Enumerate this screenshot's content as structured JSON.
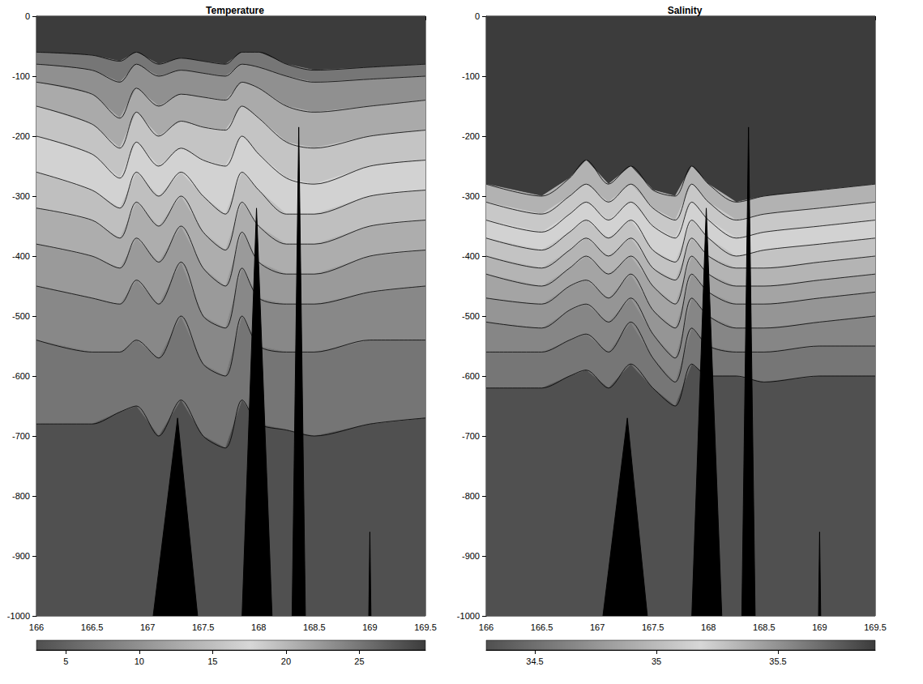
{
  "chart_data": [
    {
      "type": "contour",
      "title": "Temperature",
      "x": [
        166,
        166.5,
        166.75,
        166.9,
        167.1,
        167.3,
        167.5,
        167.7,
        167.85,
        168,
        168.25,
        168.5,
        169,
        169.5
      ],
      "xlim": [
        166,
        169.5
      ],
      "xticks": [
        166,
        166.5,
        167,
        167.5,
        168,
        168.5,
        169,
        169.5
      ],
      "ylim": [
        -1000,
        0
      ],
      "yticks": [
        -1000,
        -900,
        -800,
        -700,
        -600,
        -500,
        -400,
        -300,
        -200,
        -100,
        0
      ],
      "grid": false,
      "contours": [
        {
          "level": 26,
          "depths": [
            -60,
            -65,
            -75,
            -60,
            -80,
            -70,
            -75,
            -80,
            -60,
            -60,
            -80,
            -90,
            -85,
            -80
          ]
        },
        {
          "level": 24,
          "depths": [
            -80,
            -90,
            -110,
            -80,
            -100,
            -90,
            -95,
            -100,
            -80,
            -85,
            -100,
            -110,
            -105,
            -100
          ]
        },
        {
          "level": 22,
          "depths": [
            -110,
            -130,
            -170,
            -120,
            -150,
            -130,
            -135,
            -140,
            -110,
            -120,
            -150,
            -160,
            -150,
            -140
          ]
        },
        {
          "level": 20,
          "depths": [
            -150,
            -180,
            -220,
            -160,
            -200,
            -175,
            -185,
            -190,
            -150,
            -170,
            -210,
            -220,
            -200,
            -190
          ]
        },
        {
          "level": 18,
          "depths": [
            -200,
            -230,
            -270,
            -210,
            -250,
            -220,
            -240,
            -250,
            -200,
            -230,
            -270,
            -280,
            -250,
            -240
          ]
        },
        {
          "level": 16,
          "depths": [
            -260,
            -290,
            -320,
            -260,
            -300,
            -260,
            -300,
            -330,
            -260,
            -290,
            -330,
            -330,
            -300,
            -290
          ]
        },
        {
          "level": 14,
          "depths": [
            -320,
            -340,
            -370,
            -310,
            -350,
            -300,
            -360,
            -390,
            -310,
            -350,
            -380,
            -380,
            -350,
            -340
          ]
        },
        {
          "level": 12,
          "depths": [
            -380,
            -400,
            -420,
            -370,
            -410,
            -350,
            -420,
            -450,
            -360,
            -410,
            -430,
            -430,
            -400,
            -390
          ]
        },
        {
          "level": 10,
          "depths": [
            -450,
            -470,
            -480,
            -440,
            -480,
            -410,
            -500,
            -520,
            -420,
            -470,
            -480,
            -480,
            -460,
            -450
          ]
        },
        {
          "level": 8,
          "depths": [
            -540,
            -560,
            -560,
            -540,
            -570,
            -500,
            -580,
            -600,
            -500,
            -550,
            -560,
            -560,
            -540,
            -540
          ]
        },
        {
          "level": 6,
          "depths": [
            -680,
            -680,
            -660,
            -650,
            -700,
            -640,
            -700,
            -720,
            -640,
            -680,
            -690,
            -700,
            -680,
            -670
          ]
        }
      ],
      "seamounts": [
        {
          "x": [
            167.05,
            167.27,
            167.45
          ],
          "depth": [
            -1000,
            -670,
            -1000
          ]
        },
        {
          "x": [
            167.85,
            167.98,
            168.12
          ],
          "depth": [
            -1000,
            -320,
            -1000
          ]
        },
        {
          "x": [
            168.3,
            168.36,
            168.42
          ],
          "depth": [
            -1000,
            -185,
            -1000
          ]
        },
        {
          "x": [
            168.99,
            169.0,
            169.01
          ],
          "depth": [
            -1000,
            -860,
            -1000
          ]
        }
      ],
      "colorbar": {
        "range": [
          3,
          29.5
        ],
        "ticks": [
          5,
          10,
          15,
          20,
          25
        ]
      }
    },
    {
      "type": "contour",
      "title": "Salinity",
      "x": [
        166,
        166.5,
        166.75,
        166.9,
        167.1,
        167.3,
        167.5,
        167.7,
        167.85,
        168,
        168.25,
        168.5,
        169,
        169.5
      ],
      "xlim": [
        166,
        169.5
      ],
      "xticks": [
        166,
        166.5,
        167,
        167.5,
        168,
        168.5,
        169,
        169.5
      ],
      "ylim": [
        -1000,
        0
      ],
      "yticks": [
        -1000,
        -900,
        -800,
        -700,
        -600,
        -500,
        -400,
        -300,
        -200,
        -100,
        0
      ],
      "grid": false,
      "contours": [
        {
          "level": 35.4,
          "depths": [
            -280,
            -300,
            -270,
            -240,
            -280,
            -250,
            -290,
            -300,
            -250,
            -280,
            -310,
            -300,
            -290,
            -280
          ]
        },
        {
          "level": 35.3,
          "depths": [
            -310,
            -330,
            -300,
            -280,
            -310,
            -280,
            -320,
            -340,
            -280,
            -310,
            -340,
            -330,
            -320,
            -310
          ]
        },
        {
          "level": 35.2,
          "depths": [
            -340,
            -360,
            -330,
            -310,
            -340,
            -310,
            -350,
            -370,
            -310,
            -340,
            -370,
            -360,
            -350,
            -340
          ]
        },
        {
          "level": 35.1,
          "depths": [
            -370,
            -390,
            -360,
            -340,
            -370,
            -340,
            -390,
            -410,
            -340,
            -370,
            -400,
            -390,
            -380,
            -370
          ]
        },
        {
          "level": 35.0,
          "depths": [
            -400,
            -420,
            -390,
            -370,
            -400,
            -370,
            -420,
            -440,
            -370,
            -400,
            -420,
            -420,
            -410,
            -400
          ]
        },
        {
          "level": 34.9,
          "depths": [
            -430,
            -450,
            -420,
            -400,
            -430,
            -400,
            -450,
            -480,
            -400,
            -430,
            -450,
            -450,
            -440,
            -430
          ]
        },
        {
          "level": 34.8,
          "depths": [
            -470,
            -480,
            -450,
            -440,
            -470,
            -430,
            -490,
            -520,
            -430,
            -460,
            -480,
            -480,
            -470,
            -460
          ]
        },
        {
          "level": 34.7,
          "depths": [
            -510,
            -520,
            -490,
            -480,
            -510,
            -470,
            -530,
            -570,
            -470,
            -500,
            -520,
            -520,
            -510,
            -500
          ]
        },
        {
          "level": 34.6,
          "depths": [
            -560,
            -560,
            -540,
            -530,
            -560,
            -510,
            -570,
            -610,
            -520,
            -550,
            -560,
            -560,
            -550,
            -550
          ]
        },
        {
          "level": 34.5,
          "depths": [
            -620,
            -620,
            -600,
            -590,
            -620,
            -580,
            -620,
            -650,
            -580,
            -600,
            -600,
            -610,
            -600,
            -600
          ]
        }
      ],
      "seamounts": [
        {
          "x": [
            167.05,
            167.27,
            167.45
          ],
          "depth": [
            -1000,
            -670,
            -1000
          ]
        },
        {
          "x": [
            167.85,
            167.98,
            168.12
          ],
          "depth": [
            -1000,
            -320,
            -1000
          ]
        },
        {
          "x": [
            168.3,
            168.36,
            168.42
          ],
          "depth": [
            -1000,
            -185,
            -1000
          ]
        },
        {
          "x": [
            168.99,
            169.0,
            169.01
          ],
          "depth": [
            -1000,
            -860,
            -1000
          ]
        }
      ],
      "colorbar": {
        "range": [
          34.3,
          35.9
        ],
        "ticks": [
          34.5,
          35,
          35.5
        ]
      }
    }
  ]
}
